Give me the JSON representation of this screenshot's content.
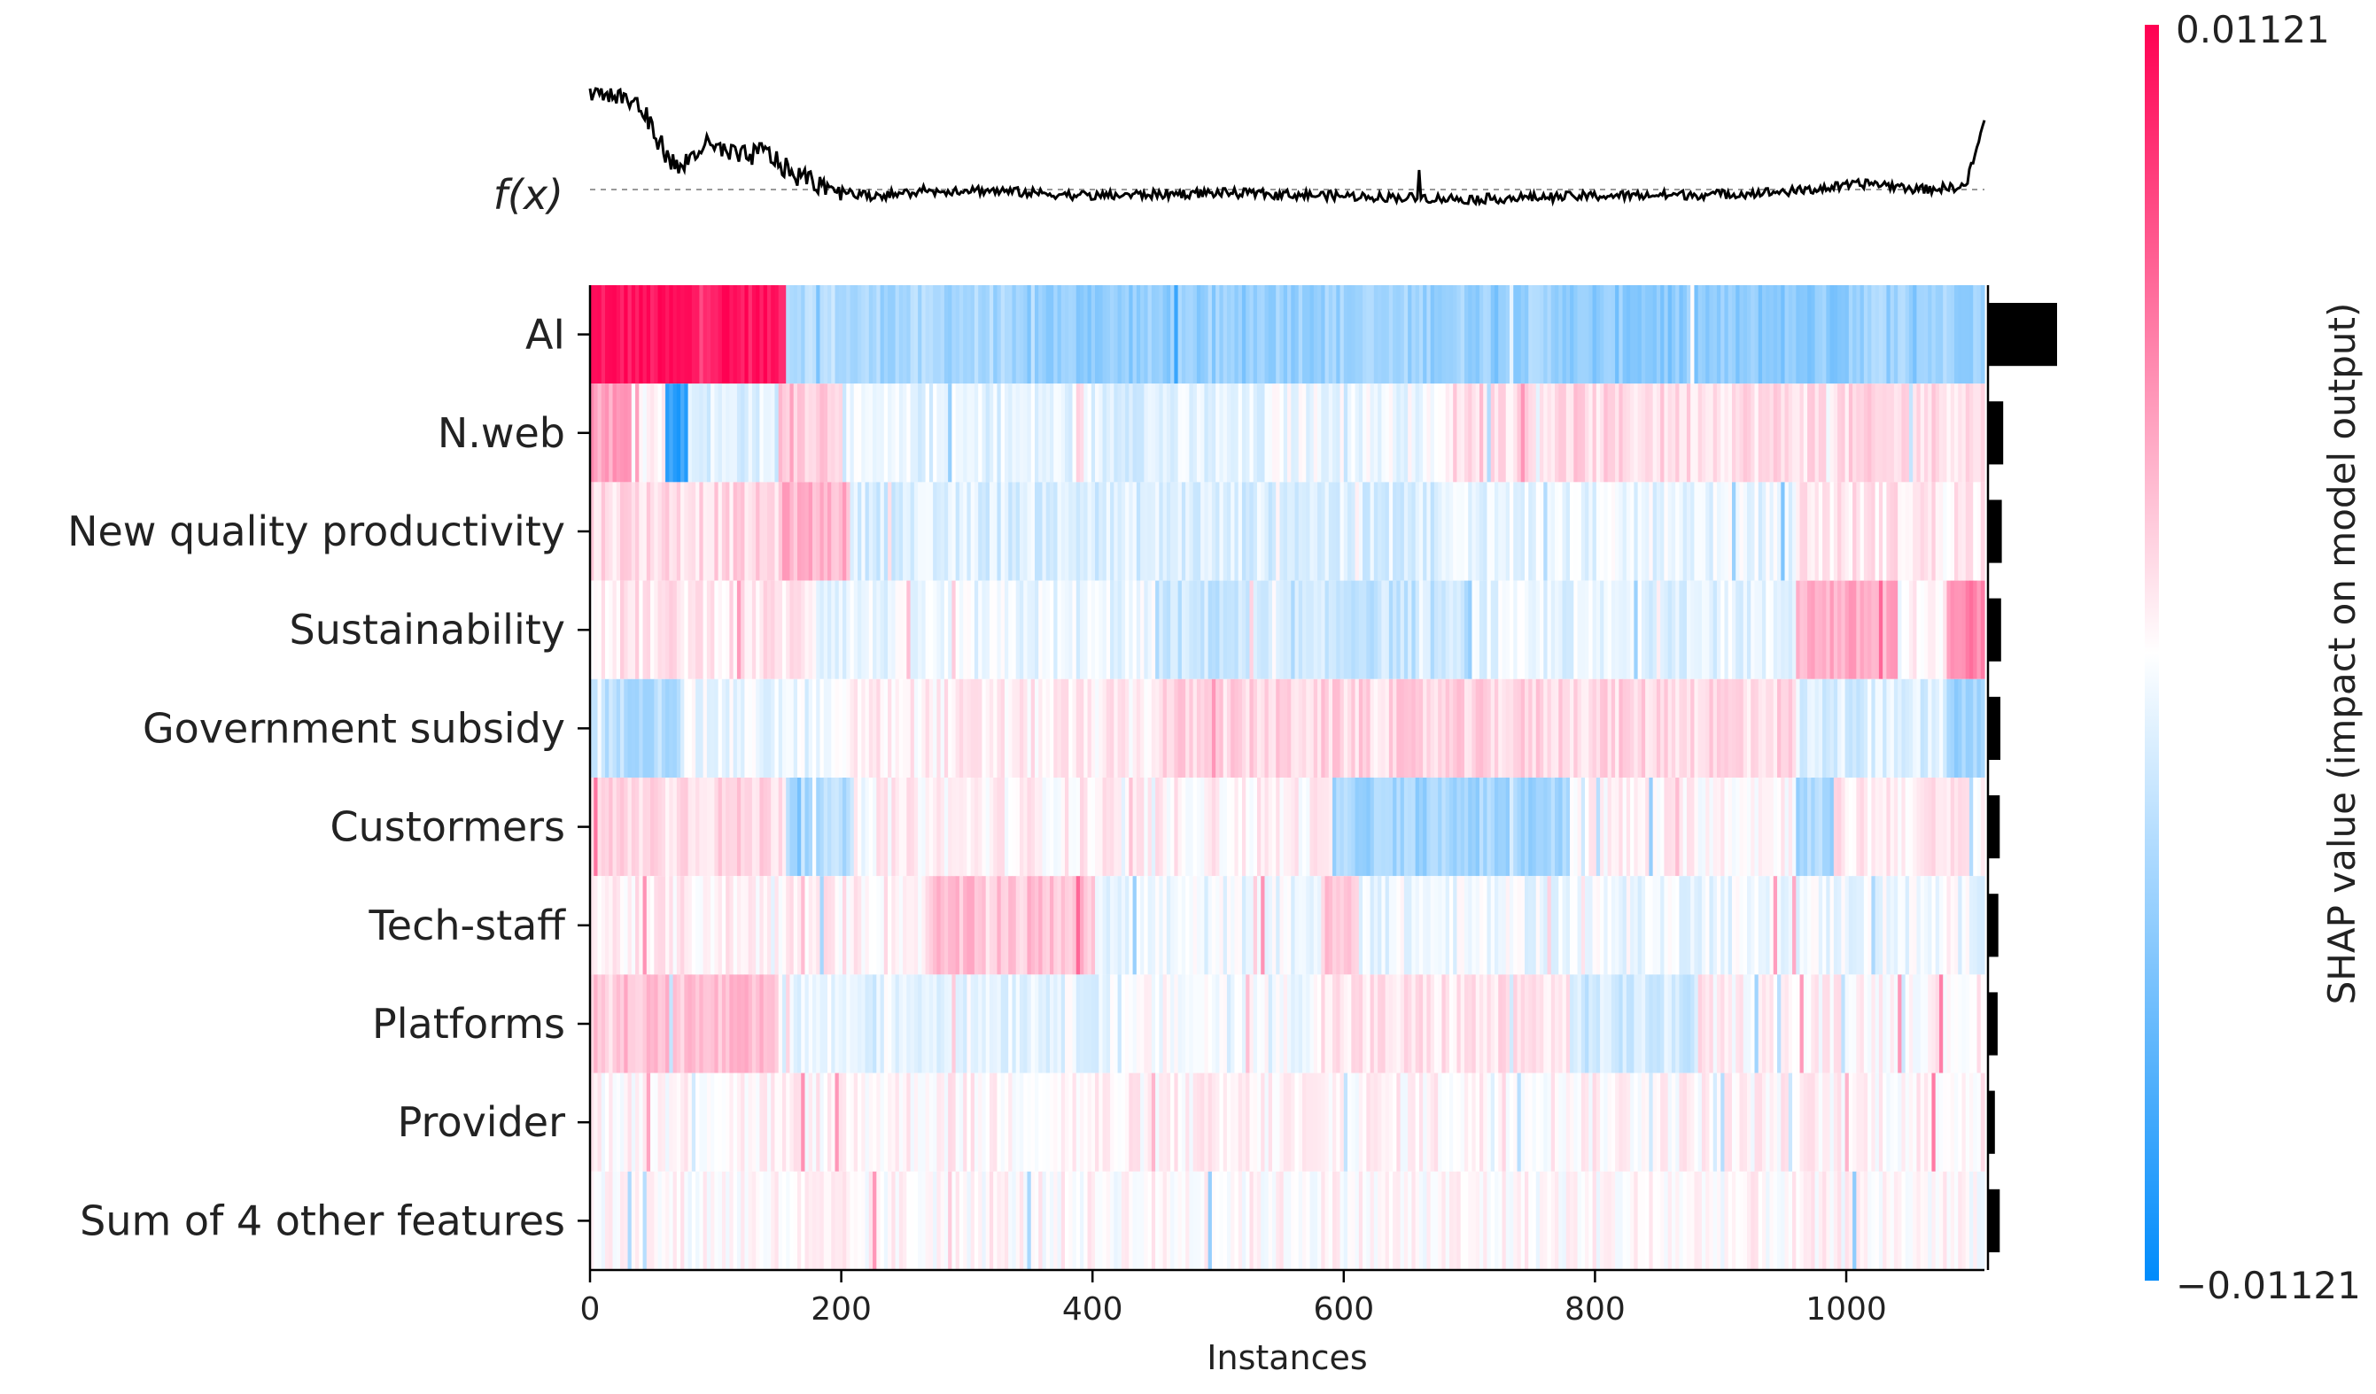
{
  "chart_data": {
    "type": "heatmap",
    "title": "",
    "xlabel": "Instances",
    "ylabel": "",
    "xlim": [
      0,
      1110
    ],
    "x_ticks": [
      0,
      200,
      400,
      600,
      800,
      1000
    ],
    "x_tick_labels": [
      "0",
      "200",
      "400",
      "600",
      "800",
      "1000"
    ],
    "fx_label": "f(x)",
    "features": [
      "AI",
      "N.web",
      "New quality productivity",
      "Sustainability",
      "Government subsidy",
      "Custormers",
      "Tech-staff",
      "Platforms",
      "Provider",
      "Sum of 4 other features"
    ],
    "mean_abs_shap_relative": [
      1.0,
      0.22,
      0.2,
      0.19,
      0.18,
      0.17,
      0.15,
      0.14,
      0.1,
      0.17
    ],
    "feature_segments": [
      [
        [
          0,
          155,
          0.92
        ],
        [
          155,
          200,
          -0.28
        ],
        [
          200,
          330,
          -0.34
        ],
        [
          330,
          520,
          -0.42
        ],
        [
          520,
          780,
          -0.38
        ],
        [
          780,
          1000,
          -0.45
        ],
        [
          1000,
          1110,
          -0.36
        ]
      ],
      [
        [
          0,
          40,
          0.38
        ],
        [
          40,
          60,
          0.05
        ],
        [
          60,
          78,
          -0.8
        ],
        [
          78,
          150,
          -0.12
        ],
        [
          150,
          200,
          0.22
        ],
        [
          200,
          400,
          -0.1
        ],
        [
          400,
          540,
          -0.12
        ],
        [
          540,
          680,
          -0.05
        ],
        [
          680,
          1110,
          0.14
        ]
      ],
      [
        [
          0,
          150,
          0.15
        ],
        [
          150,
          205,
          0.3
        ],
        [
          205,
          680,
          -0.14
        ],
        [
          680,
          960,
          -0.08
        ],
        [
          960,
          1110,
          0.1
        ]
      ],
      [
        [
          0,
          180,
          0.1
        ],
        [
          180,
          450,
          -0.08
        ],
        [
          450,
          700,
          -0.22
        ],
        [
          700,
          960,
          -0.1
        ],
        [
          960,
          1040,
          0.32
        ],
        [
          1040,
          1080,
          0.02
        ],
        [
          1080,
          1110,
          0.48
        ]
      ],
      [
        [
          0,
          70,
          -0.28
        ],
        [
          70,
          200,
          -0.08
        ],
        [
          200,
          450,
          0.06
        ],
        [
          450,
          960,
          0.16
        ],
        [
          960,
          1080,
          -0.14
        ],
        [
          1080,
          1110,
          -0.38
        ]
      ],
      [
        [
          0,
          155,
          0.16
        ],
        [
          155,
          210,
          -0.3
        ],
        [
          210,
          590,
          0.05
        ],
        [
          590,
          780,
          -0.36
        ],
        [
          780,
          960,
          0.04
        ],
        [
          960,
          990,
          -0.32
        ],
        [
          990,
          1110,
          0.08
        ]
      ],
      [
        [
          0,
          270,
          0.06
        ],
        [
          270,
          400,
          0.24
        ],
        [
          400,
          580,
          -0.06
        ],
        [
          580,
          610,
          0.2
        ],
        [
          610,
          1110,
          -0.06
        ]
      ],
      [
        [
          0,
          150,
          0.24
        ],
        [
          150,
          430,
          -0.08
        ],
        [
          430,
          580,
          -0.02
        ],
        [
          580,
          780,
          0.1
        ],
        [
          780,
          880,
          -0.18
        ],
        [
          880,
          1110,
          0.04
        ]
      ],
      [
        [
          0,
          1110,
          0.04
        ]
      ],
      [
        [
          0,
          1110,
          0.02
        ]
      ]
    ],
    "colorbar": {
      "max_label": "0.01121",
      "min_label": "−0.01121",
      "title": "SHAP value (impact on model output)",
      "high_color": "#ff0052",
      "low_color": "#008bfb",
      "mid_color": "#ffffff"
    },
    "fx_profile": [
      [
        0,
        0.62
      ],
      [
        25,
        0.58
      ],
      [
        40,
        0.52
      ],
      [
        55,
        0.3
      ],
      [
        70,
        0.12
      ],
      [
        90,
        0.28
      ],
      [
        120,
        0.2
      ],
      [
        140,
        0.24
      ],
      [
        160,
        0.1
      ],
      [
        190,
        0.02
      ],
      [
        220,
        -0.04
      ],
      [
        300,
        0.0
      ],
      [
        400,
        -0.04
      ],
      [
        500,
        -0.02
      ],
      [
        600,
        -0.04
      ],
      [
        700,
        -0.06
      ],
      [
        800,
        -0.04
      ],
      [
        900,
        -0.03
      ],
      [
        960,
        -0.01
      ],
      [
        1020,
        0.04
      ],
      [
        1060,
        0.0
      ],
      [
        1095,
        0.02
      ],
      [
        1110,
        0.42
      ]
    ],
    "fx_baseline": 0.0
  }
}
